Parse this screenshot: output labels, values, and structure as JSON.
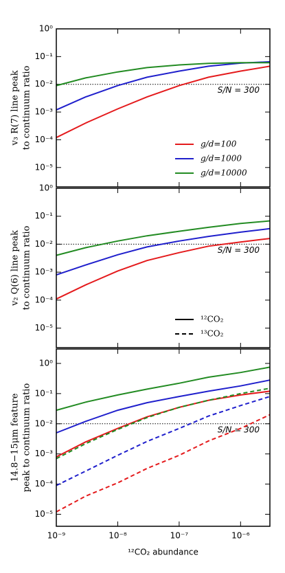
{
  "chart_data": [
    {
      "type": "line",
      "ylabel": [
        "v₃ R(7) line peak",
        "to continuum ratio"
      ],
      "x": [
        1e-09,
        3e-09,
        1e-08,
        3e-08,
        1e-07,
        3e-07,
        1e-06,
        3e-06
      ],
      "xlim": [
        1e-09,
        3e-06
      ],
      "xticks": [
        1e-09,
        1e-08,
        1e-07,
        1e-06
      ],
      "ylim": [
        2e-06,
        1
      ],
      "log": true,
      "yticks": [
        {
          "value": 1,
          "label": "10⁰"
        },
        {
          "value": 0.1,
          "label": "10⁻¹"
        },
        {
          "value": 0.01,
          "label": "10⁻²"
        },
        {
          "value": 0.001,
          "label": "10⁻³"
        },
        {
          "value": 0.0001,
          "label": "10⁻⁴"
        },
        {
          "value": 1e-05,
          "label": "10⁻⁵"
        }
      ],
      "hline": 0.01,
      "annotation": "S/N = 300",
      "legend_loc": "lower right",
      "series": [
        {
          "name": "g/d=100",
          "color": "#e41a1c",
          "values": [
            0.00012,
            0.0004,
            0.0013,
            0.0035,
            0.009,
            0.018,
            0.03,
            0.045
          ]
        },
        {
          "name": "g/d=1000",
          "color": "#1f1fcc",
          "values": [
            0.0012,
            0.0035,
            0.009,
            0.018,
            0.03,
            0.045,
            0.058,
            0.065
          ]
        },
        {
          "name": "g/d=10000",
          "color": "#228b22",
          "values": [
            0.009,
            0.017,
            0.028,
            0.04,
            0.05,
            0.057,
            0.06,
            0.06
          ]
        }
      ]
    },
    {
      "type": "line",
      "ylabel": [
        "v₂ Q(6) line peak",
        "to continuum ratio"
      ],
      "x": [
        1e-09,
        3e-09,
        1e-08,
        3e-08,
        1e-07,
        3e-07,
        1e-06,
        3e-06
      ],
      "xlim": [
        1e-09,
        3e-06
      ],
      "xticks": [
        1e-09,
        1e-08,
        1e-07,
        1e-06
      ],
      "ylim": [
        2e-06,
        1
      ],
      "log": true,
      "yticks": [
        {
          "value": 1,
          "label": "10⁰"
        },
        {
          "value": 0.1,
          "label": "10⁻¹"
        },
        {
          "value": 0.01,
          "label": "10⁻²"
        },
        {
          "value": 0.001,
          "label": "10⁻³"
        },
        {
          "value": 0.0001,
          "label": "10⁻⁴"
        },
        {
          "value": 1e-05,
          "label": "10⁻⁵"
        }
      ],
      "hline": 0.01,
      "annotation": "S/N = 300",
      "legend_loc": "lower right",
      "legend": [
        {
          "label": "¹²CO₂",
          "color": "#000000",
          "dash": false
        },
        {
          "label": "¹³CO₂",
          "color": "#000000",
          "dash": true
        }
      ],
      "series": [
        {
          "color": "#e41a1c",
          "values": [
            0.00011,
            0.00035,
            0.0011,
            0.0026,
            0.005,
            0.0085,
            0.012,
            0.016
          ]
        },
        {
          "color": "#1f1fcc",
          "values": [
            0.0008,
            0.0018,
            0.0042,
            0.008,
            0.013,
            0.019,
            0.027,
            0.036
          ]
        },
        {
          "color": "#228b22",
          "values": [
            0.004,
            0.0075,
            0.013,
            0.02,
            0.029,
            0.04,
            0.055,
            0.068
          ]
        }
      ]
    },
    {
      "type": "line",
      "ylabel": [
        "14.8−15μm feature",
        "peak to continuum ratio"
      ],
      "xlabel": "¹²CO₂ abundance",
      "x": [
        1e-09,
        3e-09,
        1e-08,
        3e-08,
        1e-07,
        3e-07,
        1e-06,
        3e-06
      ],
      "xlim": [
        1e-09,
        3e-06
      ],
      "xticks": [
        {
          "value": 1e-09,
          "label": "10⁻⁹"
        },
        {
          "value": 1e-08,
          "label": "10⁻⁸"
        },
        {
          "value": 1e-07,
          "label": "10⁻⁷"
        },
        {
          "value": 1e-06,
          "label": "10⁻⁶"
        }
      ],
      "ylim": [
        4e-06,
        3
      ],
      "log": true,
      "yticks": [
        {
          "value": 1,
          "label": "10⁰"
        },
        {
          "value": 0.1,
          "label": "10⁻¹"
        },
        {
          "value": 0.01,
          "label": "10⁻²"
        },
        {
          "value": 0.001,
          "label": "10⁻³"
        },
        {
          "value": 0.0001,
          "label": "10⁻⁴"
        },
        {
          "value": 1e-05,
          "label": "10⁻⁵"
        }
      ],
      "hline": 0.01,
      "annotation": "S/N = 300",
      "series": [
        {
          "color": "#e41a1c",
          "dash": false,
          "values": [
            0.0008,
            0.0025,
            0.007,
            0.017,
            0.035,
            0.06,
            0.09,
            0.12
          ]
        },
        {
          "color": "#1f1fcc",
          "dash": false,
          "values": [
            0.005,
            0.012,
            0.028,
            0.05,
            0.08,
            0.12,
            0.18,
            0.28
          ]
        },
        {
          "color": "#228b22",
          "dash": false,
          "values": [
            0.028,
            0.052,
            0.09,
            0.14,
            0.22,
            0.35,
            0.5,
            0.75
          ]
        },
        {
          "color": "#e41a1c",
          "dash": true,
          "values": [
            1.2e-05,
            4e-05,
            0.00011,
            0.00033,
            0.0009,
            0.0027,
            0.007,
            0.02
          ]
        },
        {
          "color": "#1f1fcc",
          "dash": true,
          "values": [
            9e-05,
            0.00027,
            0.0009,
            0.0026,
            0.007,
            0.018,
            0.04,
            0.08
          ]
        },
        {
          "color": "#228b22",
          "dash": true,
          "values": [
            0.0007,
            0.0022,
            0.0065,
            0.016,
            0.035,
            0.06,
            0.1,
            0.15
          ]
        }
      ]
    }
  ]
}
